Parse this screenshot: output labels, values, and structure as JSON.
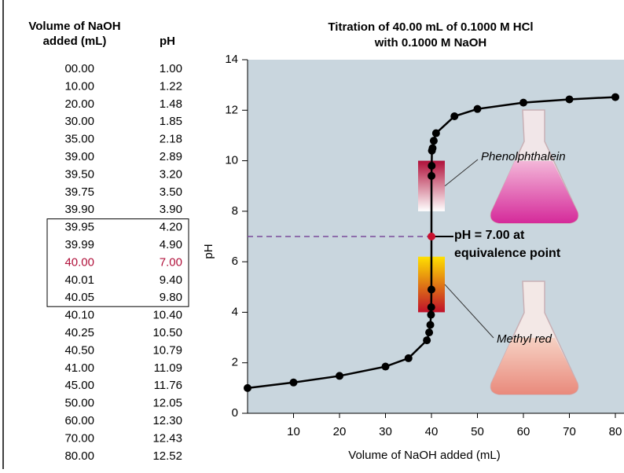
{
  "table": {
    "headers": [
      [
        "Volume of NaOH",
        "added (mL)"
      ],
      "pH"
    ],
    "rows": [
      [
        "00.00",
        "1.00"
      ],
      [
        "10.00",
        "1.22"
      ],
      [
        "20.00",
        "1.48"
      ],
      [
        "30.00",
        "1.85"
      ],
      [
        "35.00",
        "2.18"
      ],
      [
        "39.00",
        "2.89"
      ],
      [
        "39.50",
        "3.20"
      ],
      [
        "39.75",
        "3.50"
      ],
      [
        "39.90",
        "3.90"
      ],
      [
        "39.95",
        "4.20"
      ],
      [
        "39.99",
        "4.90"
      ],
      [
        "40.00",
        "7.00"
      ],
      [
        "40.01",
        "9.40"
      ],
      [
        "40.05",
        "9.80"
      ],
      [
        "40.10",
        "10.40"
      ],
      [
        "40.25",
        "10.50"
      ],
      [
        "40.50",
        "10.79"
      ],
      [
        "41.00",
        "11.09"
      ],
      [
        "45.00",
        "11.76"
      ],
      [
        "50.00",
        "12.05"
      ],
      [
        "60.00",
        "12.30"
      ],
      [
        "70.00",
        "12.43"
      ],
      [
        "80.00",
        "12.52"
      ]
    ],
    "highlight": {
      "row": 11,
      "color": "#b0103a"
    },
    "boxed_rows": [
      9,
      13
    ]
  },
  "chart_data": {
    "type": "line",
    "title": [
      "Titration of 40.00 mL of 0.1000 M HCl",
      "with 0.1000 M NaOH"
    ],
    "x_label": "Volume of NaOH added (mL)",
    "y_label": "pH",
    "x": [
      0,
      10,
      20,
      30,
      35,
      39,
      39.5,
      39.75,
      39.9,
      39.95,
      39.99,
      40,
      40.01,
      40.05,
      40.1,
      40.25,
      40.5,
      41,
      45,
      50,
      60,
      70,
      80
    ],
    "series": [
      {
        "color": "#000000",
        "values": [
          1.0,
          1.22,
          1.48,
          1.85,
          2.18,
          2.89,
          3.2,
          3.5,
          3.9,
          4.2,
          4.9,
          7.0,
          9.4,
          9.8,
          10.4,
          10.5,
          10.79,
          11.09,
          11.76,
          12.05,
          12.3,
          12.43,
          12.52
        ]
      }
    ],
    "xlim": [
      0,
      80
    ],
    "ylim": [
      0,
      14
    ],
    "xticks": [
      10,
      20,
      30,
      40,
      50,
      60,
      70,
      80
    ],
    "yticks": [
      0,
      2,
      4,
      6,
      8,
      10,
      12,
      14
    ],
    "background": "#c9d6de",
    "equivalence_point": {
      "x": 40,
      "y": 7,
      "color": "#c8102e",
      "line_color": "#7a4a9a",
      "label": [
        "pH = 7.00 at",
        "equivalence point"
      ]
    },
    "indicators": [
      {
        "name": "Phenolphthalein",
        "range": [
          8,
          10
        ],
        "colors": [
          "#ffffff",
          "#b0103a"
        ]
      },
      {
        "name": "Methyl red",
        "range": [
          4,
          6.2
        ],
        "colors": [
          "#c0102a",
          "#ffe000"
        ]
      }
    ]
  }
}
